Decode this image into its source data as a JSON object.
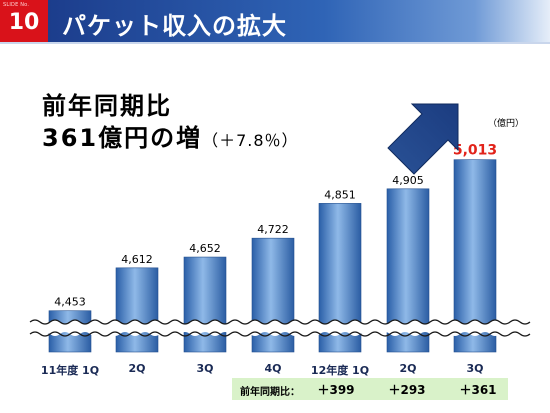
{
  "slide": {
    "label": "SLIDE No.",
    "number": "10"
  },
  "title": "パケット収入の拡大",
  "headline": {
    "line1": "前年同期比",
    "line2": "361億円の増",
    "growth": "（＋7.8％）"
  },
  "unit": "（億円）",
  "chart_data": {
    "type": "bar",
    "categories": [
      "11年度 1Q",
      "2Q",
      "3Q",
      "4Q",
      "12年度 1Q",
      "2Q",
      "3Q"
    ],
    "values": [
      4453,
      4612,
      4652,
      4722,
      4851,
      4905,
      5013
    ],
    "value_labels": [
      "4,453",
      "4,612",
      "4,652",
      "4,722",
      "4,851",
      "4,905",
      "5,013"
    ],
    "highlight_index": 6,
    "highlight_color": "#e2231a",
    "bar_color": "#3f7dc4",
    "axis_break": true,
    "ylim": [
      4300,
      5060
    ],
    "yoy_label": "前年同期比：",
    "yoy": [
      "＋399",
      "＋293",
      "＋361"
    ]
  }
}
